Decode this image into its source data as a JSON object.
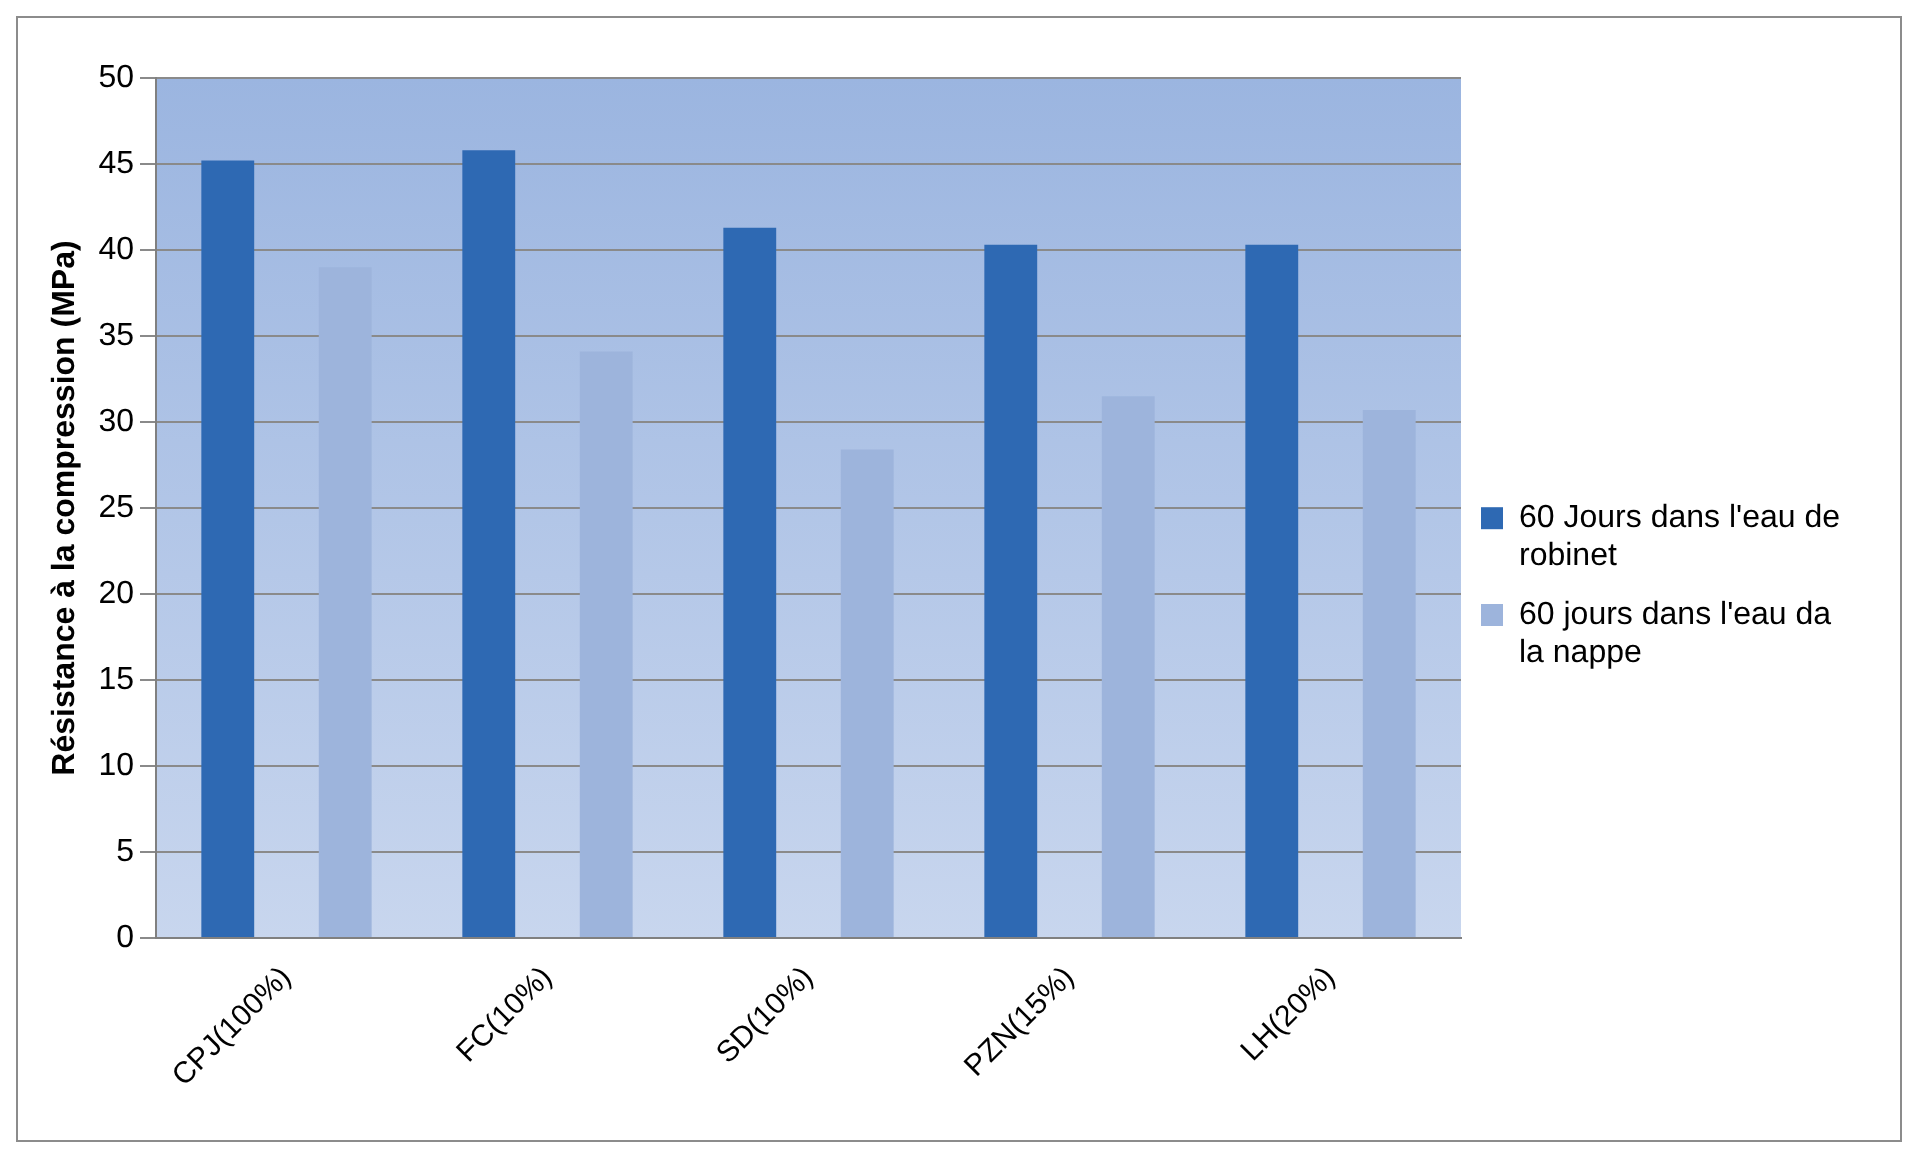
{
  "chart_data": {
    "type": "bar",
    "ylabel": "Résistance à la compression (MPa)",
    "categories": [
      "CPJ(100%)",
      "FC(10%)",
      "SD(10%)",
      "PZN(15%)",
      "LH(20%)"
    ],
    "series": [
      {
        "name": "60 Jours dans l'eau de robinet",
        "color": "#2e69b3",
        "values": [
          45.2,
          45.8,
          41.3,
          40.3,
          40.3
        ]
      },
      {
        "name": "60 jours dans l'eau da la nappe",
        "color": "#9db4dc",
        "values": [
          39.0,
          34.1,
          28.4,
          31.5,
          30.7
        ]
      }
    ],
    "ylim": [
      0,
      50
    ],
    "yticks": [
      0,
      5,
      10,
      15,
      20,
      25,
      30,
      35,
      40,
      45,
      50
    ],
    "grid": "y",
    "legend": "right"
  }
}
